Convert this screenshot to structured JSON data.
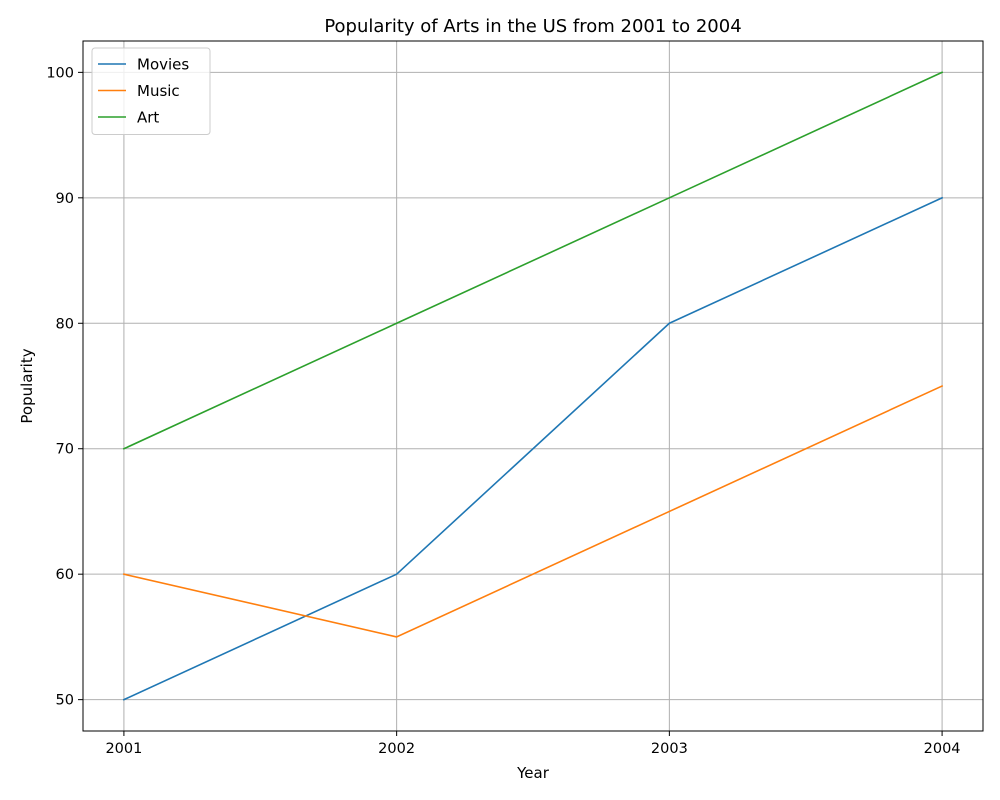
{
  "chart_data": {
    "type": "line",
    "title": "Popularity of Arts in the US from 2001 to 2004",
    "xlabel": "Year",
    "ylabel": "Popularity",
    "x": [
      2001,
      2002,
      2003,
      2004
    ],
    "x_tick_labels": [
      "2001",
      "2002",
      "2003",
      "2004"
    ],
    "y_ticks": [
      50,
      60,
      70,
      80,
      90,
      100
    ],
    "y_tick_labels": [
      "50",
      "60",
      "70",
      "80",
      "90",
      "100"
    ],
    "xlim": [
      2000.85,
      2004.15
    ],
    "ylim": [
      47.5,
      102.5
    ],
    "grid": true,
    "legend_position": "top-left",
    "series": [
      {
        "name": "Movies",
        "color": "#1f77b4",
        "values": [
          50,
          60,
          80,
          90
        ]
      },
      {
        "name": "Music",
        "color": "#ff7f0e",
        "values": [
          60,
          55,
          65,
          75
        ]
      },
      {
        "name": "Art",
        "color": "#2ca02c",
        "values": [
          70,
          80,
          90,
          100
        ]
      }
    ]
  }
}
